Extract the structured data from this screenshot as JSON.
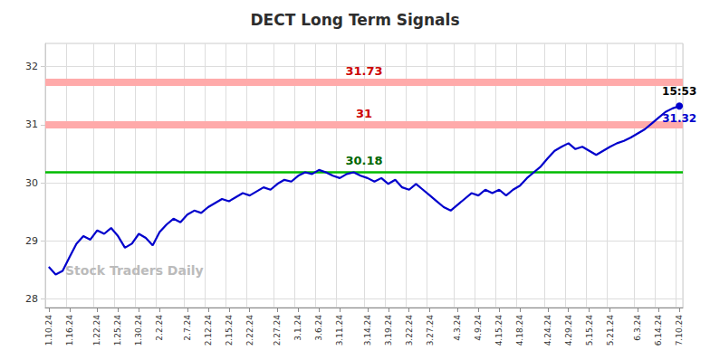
{
  "chart_data": {
    "type": "line",
    "title": "DECT Long Term Signals",
    "title_color": "#2d2d2d",
    "categories": [
      "1.10.24",
      null,
      null,
      "1.16.24",
      null,
      null,
      null,
      "1.22.24",
      null,
      null,
      "1.25.24",
      null,
      null,
      "1.30.24",
      null,
      null,
      "2.2.24",
      null,
      null,
      null,
      "2.7.24",
      null,
      null,
      "2.12.24",
      null,
      null,
      "2.15.24",
      null,
      null,
      "2.22.24",
      null,
      null,
      null,
      "2.27.24",
      null,
      null,
      "3.1.24",
      null,
      null,
      "3.6.24",
      null,
      null,
      "3.11.24",
      null,
      null,
      null,
      "3.14.24",
      null,
      null,
      "3.19.24",
      null,
      null,
      "3.22.24",
      null,
      null,
      "3.27.24",
      null,
      null,
      null,
      "4.3.24",
      null,
      null,
      "4.9.24",
      null,
      null,
      "4.15.24",
      null,
      null,
      "4.18.24",
      null,
      null,
      null,
      "4.24.24",
      null,
      null,
      "4.29.24",
      null,
      null,
      "5.15.24",
      null,
      null,
      "5.21.24",
      null,
      null,
      null,
      "6.3.24",
      null,
      null,
      "6.14.24",
      null,
      null,
      "7.10.24"
    ],
    "values": [
      28.55,
      28.42,
      28.48,
      28.72,
      28.95,
      29.08,
      29.02,
      29.18,
      29.12,
      29.22,
      29.08,
      28.88,
      28.95,
      29.12,
      29.05,
      28.92,
      29.15,
      29.28,
      29.38,
      29.32,
      29.45,
      29.52,
      29.48,
      29.58,
      29.65,
      29.72,
      29.68,
      29.75,
      29.82,
      29.78,
      29.85,
      29.92,
      29.88,
      29.98,
      30.05,
      30.02,
      30.12,
      30.18,
      30.15,
      30.22,
      30.18,
      30.12,
      30.08,
      30.15,
      30.18,
      30.12,
      30.08,
      30.02,
      30.08,
      29.98,
      30.05,
      29.92,
      29.88,
      29.98,
      29.88,
      29.78,
      29.68,
      29.58,
      29.52,
      29.62,
      29.72,
      29.82,
      29.78,
      29.88,
      29.82,
      29.88,
      29.78,
      29.88,
      29.95,
      30.08,
      30.18,
      30.28,
      30.42,
      30.55,
      30.62,
      30.68,
      30.58,
      30.62,
      30.55,
      30.48,
      30.55,
      30.62,
      30.68,
      30.72,
      30.78,
      30.85,
      30.92,
      31.02,
      31.12,
      31.22,
      31.28,
      31.32
    ],
    "color": "#0000cc",
    "ylim": [
      27.85,
      32.4
    ],
    "yticks": [
      28,
      29,
      30,
      31,
      32
    ],
    "grid": true,
    "hlines": [
      {
        "value": 31.73,
        "label": "31.73",
        "color": "#ffaaaa",
        "label_color": "#cc0000",
        "line_style": "band"
      },
      {
        "value": 31.0,
        "label": "31",
        "color": "#ffaaaa",
        "label_color": "#cc0000",
        "line_style": "band"
      },
      {
        "value": 30.18,
        "label": "30.18",
        "color": "#00bb00",
        "label_color": "#006600",
        "line_style": "solid"
      }
    ],
    "annotations": [
      {
        "text": "15:53",
        "index": 91,
        "y": 31.32,
        "color": "#000000",
        "position": "above",
        "marker": "circle"
      },
      {
        "text": "31.32",
        "index": 91,
        "y": 31.32,
        "color": "#0000cc",
        "position": "below"
      }
    ],
    "watermark": {
      "text": "Stock Traders Daily",
      "color": "#bbbbbb"
    }
  }
}
